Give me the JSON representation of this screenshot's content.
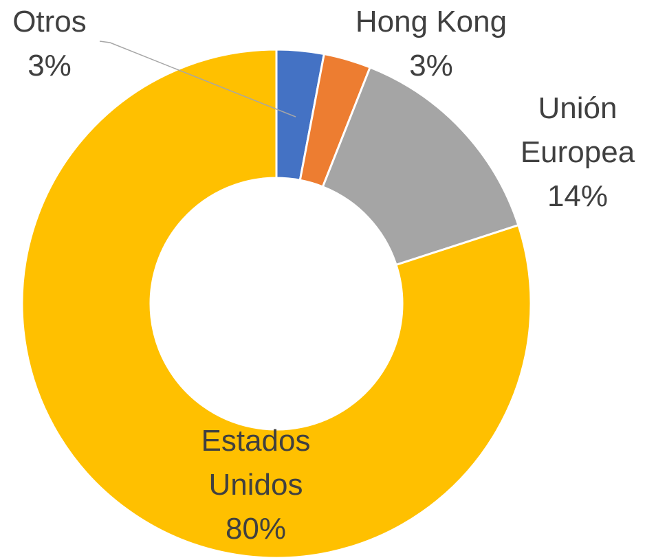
{
  "chart_data": {
    "type": "donut",
    "categories": [
      "Otros",
      "Hong Kong",
      "Unión Europea",
      "Estados Unidos"
    ],
    "values": [
      3,
      3,
      14,
      80
    ],
    "value_labels": [
      "3%",
      "3%",
      "14%",
      "80%"
    ],
    "colors": [
      "#4472c4",
      "#ed7d31",
      "#a5a5a5",
      "#ffc000"
    ]
  }
}
